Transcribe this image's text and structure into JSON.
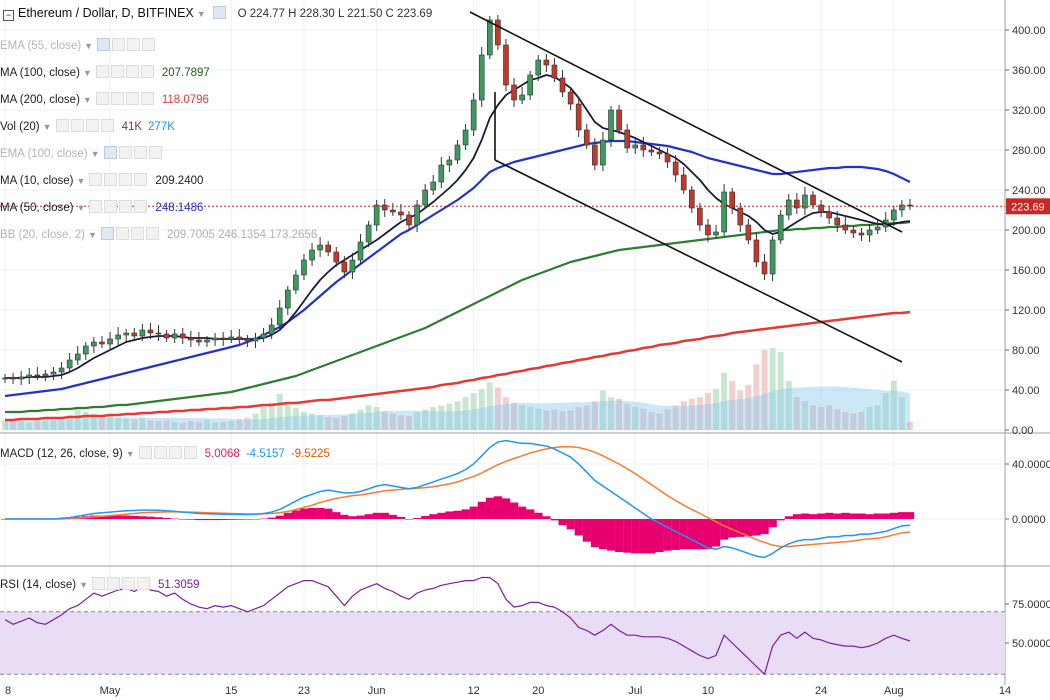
{
  "header": {
    "collapse_icon": "minus-box-icon",
    "title": "Ethereum / Dollar, D, BITFINEX",
    "ohlc": "O 224.77  H 228.30  L 221.50  C 223.69"
  },
  "legend": [
    {
      "id": "ema55",
      "name": "EMA (55, close)",
      "values": [],
      "muted": true
    },
    {
      "id": "ma100",
      "name": "MA (100, close)",
      "values": [
        {
          "text": "207.7897",
          "color": "#1f5f1f"
        }
      ],
      "muted": false
    },
    {
      "id": "ma200",
      "name": "MA (200, close)",
      "values": [
        {
          "text": "118.0796",
          "color": "#e53935"
        }
      ],
      "muted": false
    },
    {
      "id": "vol20",
      "name": "Vol (20)",
      "values": [
        {
          "text": "41K",
          "color": "#7a3b3b"
        },
        {
          "text": "277K",
          "color": "#2196f3"
        }
      ],
      "muted": false
    },
    {
      "id": "ema100",
      "name": "EMA (100, close)",
      "values": [],
      "muted": true
    },
    {
      "id": "ma10",
      "name": "MA (10, close)",
      "values": [
        {
          "text": "209.2400",
          "color": "#222222"
        }
      ],
      "muted": false
    },
    {
      "id": "ma50",
      "name": "MA (50, close)",
      "values": [
        {
          "text": "248.1486",
          "color": "#2233cc"
        }
      ],
      "muted": false
    },
    {
      "id": "bb20",
      "name": "BB (20, close, 2)",
      "values": [
        {
          "text": "209.7005  246.1354  173.2656",
          "color": "#b0b0b0"
        }
      ],
      "muted": true
    }
  ],
  "macd_legend": {
    "name": "MACD (12, 26, close, 9)",
    "values": [
      {
        "text": "5.0068",
        "color": "#e91e63"
      },
      {
        "text": "-4.5157",
        "color": "#2196f3"
      },
      {
        "text": "-9.5225",
        "color": "#e65100"
      }
    ]
  },
  "rsi_legend": {
    "name": "RSI (14, close)",
    "values": [
      {
        "text": "51.3059",
        "color": "#7b1fa2"
      }
    ]
  },
  "colors": {
    "up": "#3c9a5f",
    "down": "#c0392b",
    "ma10": "#1a1a3a",
    "ma50": "#2233cc",
    "ma100": "#2e7d32",
    "ma200": "#e53935",
    "macd": "#2196f3",
    "signal": "#ff7a30",
    "hist": "#e8006f",
    "rsi": "#7b1fa2",
    "rsi_band": "#e9dcf5",
    "price_line": "#c62828"
  },
  "chart_data": {
    "type": "candlestick",
    "x_ticks": [
      "8",
      "May",
      "15",
      "23",
      "Jun",
      "12",
      "20",
      "Jul",
      "10",
      "24",
      "Aug",
      "14"
    ],
    "y_ticks_price": [
      "400.00",
      "360.00",
      "320.00",
      "280.00",
      "240.00",
      "200.00",
      "160.00",
      "120.00",
      "80.00",
      "40.00",
      "0.00"
    ],
    "y_ticks_macd": [
      "40.0000",
      "0.0000"
    ],
    "y_ticks_rsi": [
      "75.0000",
      "50.0000"
    ],
    "ylim_price": [
      0,
      420
    ],
    "last_price": "223.69",
    "close": [
      52,
      51,
      53,
      55,
      54,
      56,
      58,
      62,
      70,
      76,
      84,
      88,
      86,
      91,
      95,
      97,
      94,
      100,
      97,
      96,
      92,
      96,
      92,
      90,
      88,
      90,
      92,
      91,
      93,
      91,
      89,
      92,
      96,
      105,
      122,
      140,
      155,
      170,
      180,
      185,
      178,
      168,
      158,
      170,
      188,
      205,
      225,
      220,
      218,
      215,
      205,
      225,
      240,
      248,
      265,
      270,
      285,
      300,
      330,
      375,
      410,
      385,
      345,
      330,
      335,
      355,
      370,
      365,
      352,
      338,
      326,
      300,
      285,
      265,
      290,
      320,
      300,
      282,
      285,
      280,
      278,
      276,
      268,
      255,
      240,
      222,
      205,
      195,
      198,
      238,
      222,
      205,
      190,
      168,
      156,
      190,
      215,
      230,
      222,
      235,
      225,
      218,
      212,
      205,
      200,
      197,
      195,
      200,
      203,
      210,
      220,
      225,
      224
    ],
    "ma10": [
      52,
      52,
      52,
      53,
      53,
      53,
      54,
      55,
      58,
      62,
      67,
      72,
      76,
      80,
      84,
      88,
      90,
      92,
      93,
      94,
      94,
      94,
      93,
      92,
      92,
      92,
      91,
      91,
      91,
      91,
      91,
      91,
      92,
      95,
      100,
      108,
      118,
      129,
      140,
      150,
      158,
      165,
      170,
      175,
      180,
      185,
      190,
      196,
      202,
      208,
      212,
      216,
      222,
      228,
      235,
      242,
      250,
      260,
      272,
      290,
      312,
      325,
      335,
      340,
      345,
      350,
      352,
      355,
      353,
      348,
      342,
      332,
      320,
      308,
      302,
      300,
      298,
      295,
      292,
      288,
      284,
      280,
      276,
      272,
      266,
      258,
      250,
      240,
      232,
      226,
      222,
      218,
      214,
      208,
      200,
      196,
      198,
      203,
      208,
      213,
      217,
      218,
      218,
      216,
      214,
      212,
      210,
      208,
      206,
      205,
      206,
      208,
      209
    ],
    "ma50": [
      34,
      35,
      36,
      37,
      38,
      39,
      40,
      41,
      43,
      45,
      47,
      49,
      51,
      53,
      55,
      57,
      59,
      61,
      63,
      65,
      67,
      69,
      71,
      73,
      75,
      77,
      79,
      81,
      83,
      85,
      88,
      91,
      95,
      99,
      103,
      108,
      114,
      120,
      127,
      134,
      141,
      148,
      154,
      160,
      166,
      172,
      178,
      184,
      190,
      196,
      200,
      205,
      210,
      215,
      220,
      225,
      230,
      236,
      242,
      250,
      258,
      262,
      265,
      268,
      270,
      272,
      274,
      276,
      278,
      280,
      282,
      284,
      286,
      287,
      288,
      289,
      289,
      289,
      288,
      287,
      286,
      285,
      284,
      282,
      280,
      278,
      275,
      272,
      270,
      268,
      266,
      264,
      262,
      260,
      258,
      256,
      256,
      257,
      258,
      259,
      260,
      261,
      262,
      262,
      263,
      263,
      263,
      262,
      261,
      259,
      256,
      252,
      248
    ],
    "ma100": [
      18,
      18,
      18,
      19,
      19,
      20,
      20,
      21,
      21,
      22,
      22,
      23,
      23,
      24,
      25,
      25,
      26,
      27,
      28,
      29,
      30,
      31,
      32,
      33,
      34,
      35,
      36,
      37,
      38,
      40,
      42,
      44,
      46,
      48,
      50,
      52,
      54,
      57,
      60,
      63,
      66,
      69,
      72,
      75,
      78,
      81,
      84,
      87,
      90,
      93,
      96,
      99,
      102,
      106,
      110,
      114,
      118,
      122,
      126,
      130,
      134,
      138,
      142,
      146,
      150,
      153,
      156,
      159,
      162,
      165,
      168,
      170,
      172,
      174,
      176,
      178,
      180,
      181,
      182,
      183,
      184,
      185,
      186,
      187,
      188,
      189,
      190,
      191,
      192,
      193,
      194,
      195,
      196,
      197,
      198,
      199,
      200,
      200,
      201,
      201,
      202,
      202,
      203,
      203,
      204,
      204,
      205,
      205,
      206,
      206,
      207,
      207,
      208
    ],
    "ma200": [
      10,
      10,
      11,
      11,
      11,
      12,
      12,
      12,
      13,
      13,
      14,
      14,
      14,
      15,
      15,
      16,
      16,
      17,
      17,
      18,
      18,
      19,
      19,
      20,
      20,
      21,
      21,
      22,
      22,
      23,
      23,
      24,
      25,
      25,
      26,
      27,
      27,
      28,
      29,
      30,
      30,
      31,
      32,
      33,
      34,
      35,
      36,
      37,
      38,
      39,
      40,
      41,
      42,
      43,
      45,
      46,
      47,
      49,
      50,
      52,
      53,
      55,
      56,
      58,
      59,
      61,
      62,
      64,
      65,
      67,
      68,
      70,
      71,
      73,
      74,
      76,
      77,
      79,
      80,
      82,
      83,
      85,
      86,
      87,
      89,
      90,
      91,
      93,
      94,
      95,
      97,
      98,
      99,
      100,
      101,
      102,
      103,
      104,
      105,
      106,
      107,
      108,
      109,
      110,
      111,
      112,
      113,
      114,
      115,
      116,
      117,
      117,
      118
    ],
    "volume": [
      12,
      10,
      11,
      9,
      12,
      14,
      13,
      15,
      18,
      25,
      22,
      20,
      16,
      18,
      15,
      14,
      13,
      15,
      12,
      11,
      12,
      10,
      9,
      11,
      10,
      12,
      9,
      10,
      11,
      13,
      15,
      20,
      28,
      33,
      44,
      31,
      27,
      22,
      20,
      18,
      16,
      15,
      17,
      20,
      25,
      30,
      28,
      23,
      20,
      18,
      17,
      22,
      25,
      28,
      30,
      32,
      35,
      40,
      45,
      50,
      58,
      52,
      40,
      33,
      30,
      28,
      26,
      24,
      25,
      23,
      24,
      28,
      30,
      35,
      48,
      40,
      38,
      32,
      28,
      26,
      22,
      20,
      25,
      30,
      35,
      38,
      40,
      45,
      50,
      70,
      60,
      48,
      55,
      80,
      98,
      100,
      95,
      60,
      40,
      35,
      30,
      28,
      30,
      25,
      22,
      20,
      22,
      28,
      30,
      45,
      60,
      40,
      10
    ],
    "macd": [
      0,
      0,
      0,
      0,
      0,
      0,
      0,
      0.5,
      1,
      2,
      3,
      4,
      4.5,
      5,
      5.5,
      6,
      6.2,
      6.5,
      6.5,
      6.3,
      6,
      5.5,
      5,
      4.5,
      4,
      3.8,
      3.6,
      3.5,
      3.4,
      3.3,
      3.2,
      3.5,
      4,
      5,
      7,
      10,
      13,
      16,
      18,
      20,
      21,
      20,
      19,
      19,
      20,
      22,
      24,
      25,
      24,
      23,
      22,
      23,
      25,
      27,
      29,
      31,
      33,
      36,
      40,
      46,
      52,
      56,
      57,
      56,
      55,
      55,
      54,
      53,
      51,
      48,
      45,
      40,
      34,
      28,
      24,
      20,
      16,
      12,
      8,
      4,
      0,
      -3,
      -6,
      -9,
      -12,
      -15,
      -18,
      -21,
      -22,
      -20,
      -21,
      -23,
      -25,
      -27,
      -28,
      -25,
      -21,
      -18,
      -16,
      -15,
      -15,
      -14,
      -13,
      -13,
      -12,
      -12,
      -11,
      -11,
      -10,
      -9,
      -7,
      -5,
      -4.5
    ],
    "signal": [
      0,
      0,
      0,
      0,
      0,
      0,
      0,
      0,
      0.3,
      0.6,
      1,
      1.5,
      2,
      2.5,
      3,
      3.5,
      4,
      4.5,
      4.8,
      5,
      5.2,
      5.2,
      5.1,
      5,
      4.8,
      4.6,
      4.4,
      4.2,
      4,
      3.8,
      3.6,
      3.6,
      3.7,
      4,
      4.6,
      5.5,
      6.8,
      8.4,
      10,
      12,
      13.5,
      15,
      16,
      17,
      17.5,
      18.5,
      19.5,
      20.5,
      21,
      21.5,
      22,
      22.3,
      22.8,
      23.5,
      24.5,
      25.5,
      27,
      29,
      31,
      33.5,
      36.5,
      39.5,
      42,
      44,
      46,
      48,
      49.5,
      51,
      52,
      52.5,
      52.5,
      52,
      50.5,
      48.5,
      46,
      43,
      40,
      36.5,
      33,
      29,
      25,
      21,
      17,
      13.5,
      10,
      7,
      4,
      1,
      -2,
      -5,
      -7.5,
      -10,
      -12.5,
      -15,
      -17,
      -19,
      -20,
      -20,
      -19.5,
      -19,
      -18.5,
      -18,
      -17.5,
      -17,
      -16.5,
      -16,
      -15,
      -14.5,
      -14,
      -13,
      -11.5,
      -10,
      -9.5
    ],
    "rsi": [
      65,
      62,
      64,
      66,
      63,
      62,
      65,
      68,
      72,
      74,
      78,
      82,
      80,
      82,
      84,
      85,
      83,
      86,
      84,
      83,
      80,
      82,
      78,
      75,
      73,
      72,
      74,
      73,
      74,
      72,
      70,
      72,
      74,
      78,
      82,
      86,
      88,
      90,
      90,
      88,
      86,
      80,
      74,
      80,
      84,
      86,
      88,
      85,
      83,
      80,
      78,
      82,
      84,
      85,
      87,
      88,
      89,
      90,
      90,
      92,
      92,
      88,
      78,
      73,
      74,
      76,
      76,
      74,
      73,
      70,
      66,
      60,
      58,
      55,
      58,
      62,
      58,
      55,
      55,
      54,
      54,
      54,
      53,
      51,
      48,
      45,
      42,
      40,
      42,
      55,
      50,
      45,
      40,
      35,
      30,
      48,
      55,
      57,
      53,
      57,
      53,
      52,
      50,
      49,
      48,
      48,
      47,
      48,
      50,
      53,
      55,
      53,
      51.3
    ]
  }
}
